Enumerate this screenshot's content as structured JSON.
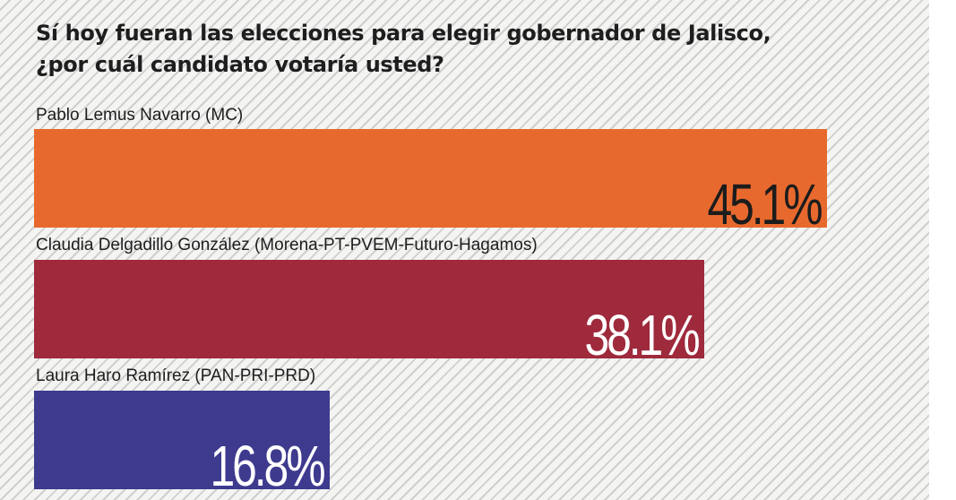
{
  "chart_data": {
    "type": "bar",
    "orientation": "horizontal",
    "title": "Sí hoy fueran las elecciones para elegir gobernador de Jalisco,\n¿por cuál candidato votaría usted?",
    "categories": [
      "Pablo Lemus Navarro (MC)",
      "Claudia Delgadillo González (Morena-PT-PVEM-Futuro-Hagamos)",
      "Laura Haro Ramírez (PAN-PRI-PRD)"
    ],
    "values": [
      45.1,
      38.1,
      16.8
    ],
    "value_labels": [
      "45.1%",
      "38.1%",
      "16.8%"
    ],
    "colors": [
      "#e8692e",
      "#9e2a3c",
      "#3e3a8e"
    ],
    "value_label_colors": [
      "#1c1c1c",
      "#ffffff",
      "#ffffff"
    ],
    "grid": false,
    "legend": "none"
  }
}
